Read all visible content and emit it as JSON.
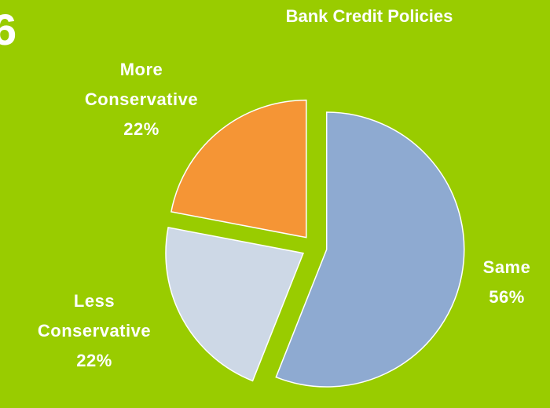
{
  "stray_glyph": "6",
  "chart_data": {
    "type": "pie",
    "title": "Bank Credit Policies",
    "slices": [
      {
        "name": "Same",
        "line1": "Same",
        "line2": "",
        "value": 56,
        "label": "56%",
        "color": "#8eaad1"
      },
      {
        "name": "Less Conservative",
        "line1": "Less",
        "line2": "Conservative",
        "value": 22,
        "label": "22%",
        "color": "#cdd8e6"
      },
      {
        "name": "More Conservative",
        "line1": "More",
        "line2": "Conservative",
        "value": 22,
        "label": "22%",
        "color": "#f59535"
      }
    ]
  },
  "colors": {
    "background": "#99cc00",
    "slice_stroke": "#ffffff",
    "text": "#ffffff"
  }
}
